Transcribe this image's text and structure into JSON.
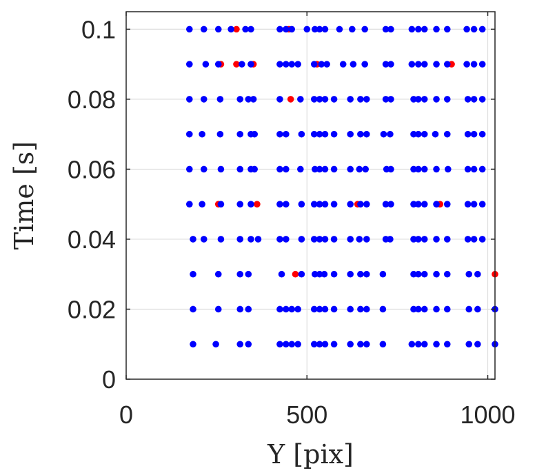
{
  "chart_data": {
    "type": "scatter",
    "xlabel": "Y [pix]",
    "ylabel": "Time [s]",
    "xlim": [
      0,
      1020
    ],
    "ylim": [
      0,
      0.105
    ],
    "xticks": [
      0,
      500,
      1000
    ],
    "xtick_labels": [
      "0",
      "500",
      "1000"
    ],
    "yticks": [
      0,
      0.02,
      0.04,
      0.06,
      0.08,
      0.1
    ],
    "ytick_labels": [
      "0",
      "0.02",
      "0.04",
      "0.06",
      "0.08",
      "0.1"
    ],
    "grid": true,
    "series": [
      {
        "color": "#ff0000",
        "points": [
          [
            305,
            0.1
          ],
          [
            450,
            0.1
          ],
          [
            262,
            0.09
          ],
          [
            305,
            0.09
          ],
          [
            352,
            0.09
          ],
          [
            528,
            0.09
          ],
          [
            900,
            0.09
          ],
          [
            455,
            0.08
          ],
          [
            255,
            0.05
          ],
          [
            362,
            0.05
          ],
          [
            640,
            0.05
          ],
          [
            868,
            0.05
          ],
          [
            468,
            0.03
          ],
          [
            1020,
            0.03
          ]
        ]
      },
      {
        "color": "#0000ff",
        "points": [
          [
            175,
            0.1
          ],
          [
            215,
            0.1
          ],
          [
            255,
            0.1
          ],
          [
            290,
            0.1
          ],
          [
            330,
            0.1
          ],
          [
            345,
            0.1
          ],
          [
            425,
            0.1
          ],
          [
            442,
            0.1
          ],
          [
            458,
            0.1
          ],
          [
            500,
            0.1
          ],
          [
            522,
            0.1
          ],
          [
            535,
            0.1
          ],
          [
            550,
            0.1
          ],
          [
            590,
            0.1
          ],
          [
            625,
            0.1
          ],
          [
            660,
            0.1
          ],
          [
            718,
            0.1
          ],
          [
            732,
            0.1
          ],
          [
            790,
            0.1
          ],
          [
            808,
            0.1
          ],
          [
            825,
            0.1
          ],
          [
            858,
            0.1
          ],
          [
            888,
            0.1
          ],
          [
            942,
            0.1
          ],
          [
            962,
            0.1
          ],
          [
            985,
            0.1
          ],
          [
            175,
            0.09
          ],
          [
            220,
            0.09
          ],
          [
            255,
            0.09
          ],
          [
            320,
            0.09
          ],
          [
            345,
            0.09
          ],
          [
            425,
            0.09
          ],
          [
            442,
            0.09
          ],
          [
            458,
            0.09
          ],
          [
            475,
            0.09
          ],
          [
            520,
            0.09
          ],
          [
            540,
            0.09
          ],
          [
            555,
            0.09
          ],
          [
            600,
            0.09
          ],
          [
            628,
            0.09
          ],
          [
            660,
            0.09
          ],
          [
            718,
            0.09
          ],
          [
            732,
            0.09
          ],
          [
            790,
            0.09
          ],
          [
            808,
            0.09
          ],
          [
            825,
            0.09
          ],
          [
            858,
            0.09
          ],
          [
            888,
            0.09
          ],
          [
            942,
            0.09
          ],
          [
            962,
            0.09
          ],
          [
            985,
            0.09
          ],
          [
            175,
            0.08
          ],
          [
            215,
            0.08
          ],
          [
            260,
            0.08
          ],
          [
            315,
            0.08
          ],
          [
            338,
            0.08
          ],
          [
            352,
            0.08
          ],
          [
            425,
            0.08
          ],
          [
            482,
            0.08
          ],
          [
            520,
            0.08
          ],
          [
            535,
            0.08
          ],
          [
            550,
            0.08
          ],
          [
            575,
            0.08
          ],
          [
            620,
            0.08
          ],
          [
            648,
            0.08
          ],
          [
            665,
            0.08
          ],
          [
            718,
            0.08
          ],
          [
            732,
            0.08
          ],
          [
            795,
            0.08
          ],
          [
            808,
            0.08
          ],
          [
            825,
            0.08
          ],
          [
            858,
            0.08
          ],
          [
            888,
            0.08
          ],
          [
            945,
            0.08
          ],
          [
            962,
            0.08
          ],
          [
            985,
            0.08
          ],
          [
            175,
            0.07
          ],
          [
            210,
            0.07
          ],
          [
            260,
            0.07
          ],
          [
            315,
            0.07
          ],
          [
            345,
            0.07
          ],
          [
            355,
            0.07
          ],
          [
            425,
            0.07
          ],
          [
            442,
            0.07
          ],
          [
            485,
            0.07
          ],
          [
            520,
            0.07
          ],
          [
            535,
            0.07
          ],
          [
            550,
            0.07
          ],
          [
            575,
            0.07
          ],
          [
            620,
            0.07
          ],
          [
            648,
            0.07
          ],
          [
            665,
            0.07
          ],
          [
            712,
            0.07
          ],
          [
            730,
            0.07
          ],
          [
            795,
            0.07
          ],
          [
            808,
            0.07
          ],
          [
            825,
            0.07
          ],
          [
            855,
            0.07
          ],
          [
            888,
            0.07
          ],
          [
            945,
            0.07
          ],
          [
            962,
            0.07
          ],
          [
            985,
            0.07
          ],
          [
            175,
            0.06
          ],
          [
            215,
            0.06
          ],
          [
            262,
            0.06
          ],
          [
            315,
            0.06
          ],
          [
            345,
            0.06
          ],
          [
            355,
            0.06
          ],
          [
            425,
            0.06
          ],
          [
            442,
            0.06
          ],
          [
            482,
            0.06
          ],
          [
            522,
            0.06
          ],
          [
            535,
            0.06
          ],
          [
            550,
            0.06
          ],
          [
            575,
            0.06
          ],
          [
            620,
            0.06
          ],
          [
            645,
            0.06
          ],
          [
            662,
            0.06
          ],
          [
            720,
            0.06
          ],
          [
            732,
            0.06
          ],
          [
            795,
            0.06
          ],
          [
            808,
            0.06
          ],
          [
            825,
            0.06
          ],
          [
            858,
            0.06
          ],
          [
            890,
            0.06
          ],
          [
            945,
            0.06
          ],
          [
            962,
            0.06
          ],
          [
            985,
            0.06
          ],
          [
            175,
            0.05
          ],
          [
            210,
            0.05
          ],
          [
            262,
            0.05
          ],
          [
            315,
            0.05
          ],
          [
            345,
            0.05
          ],
          [
            425,
            0.05
          ],
          [
            442,
            0.05
          ],
          [
            485,
            0.05
          ],
          [
            520,
            0.05
          ],
          [
            535,
            0.05
          ],
          [
            550,
            0.05
          ],
          [
            575,
            0.05
          ],
          [
            620,
            0.05
          ],
          [
            648,
            0.05
          ],
          [
            665,
            0.05
          ],
          [
            718,
            0.05
          ],
          [
            732,
            0.05
          ],
          [
            795,
            0.05
          ],
          [
            808,
            0.05
          ],
          [
            825,
            0.05
          ],
          [
            858,
            0.05
          ],
          [
            888,
            0.05
          ],
          [
            945,
            0.05
          ],
          [
            962,
            0.05
          ],
          [
            985,
            0.05
          ],
          [
            185,
            0.04
          ],
          [
            215,
            0.04
          ],
          [
            262,
            0.04
          ],
          [
            315,
            0.04
          ],
          [
            345,
            0.04
          ],
          [
            365,
            0.04
          ],
          [
            425,
            0.04
          ],
          [
            442,
            0.04
          ],
          [
            485,
            0.04
          ],
          [
            520,
            0.04
          ],
          [
            535,
            0.04
          ],
          [
            550,
            0.04
          ],
          [
            575,
            0.04
          ],
          [
            620,
            0.04
          ],
          [
            645,
            0.04
          ],
          [
            665,
            0.04
          ],
          [
            718,
            0.04
          ],
          [
            730,
            0.04
          ],
          [
            795,
            0.04
          ],
          [
            808,
            0.04
          ],
          [
            825,
            0.04
          ],
          [
            858,
            0.04
          ],
          [
            888,
            0.04
          ],
          [
            945,
            0.04
          ],
          [
            962,
            0.04
          ],
          [
            985,
            0.04
          ],
          [
            185,
            0.03
          ],
          [
            255,
            0.03
          ],
          [
            315,
            0.03
          ],
          [
            338,
            0.03
          ],
          [
            430,
            0.03
          ],
          [
            485,
            0.03
          ],
          [
            522,
            0.03
          ],
          [
            535,
            0.03
          ],
          [
            548,
            0.03
          ],
          [
            575,
            0.03
          ],
          [
            620,
            0.03
          ],
          [
            648,
            0.03
          ],
          [
            665,
            0.03
          ],
          [
            710,
            0.03
          ],
          [
            795,
            0.03
          ],
          [
            808,
            0.03
          ],
          [
            825,
            0.03
          ],
          [
            858,
            0.03
          ],
          [
            888,
            0.03
          ],
          [
            948,
            0.03
          ],
          [
            972,
            0.03
          ],
          [
            185,
            0.02
          ],
          [
            255,
            0.02
          ],
          [
            315,
            0.02
          ],
          [
            338,
            0.02
          ],
          [
            425,
            0.02
          ],
          [
            442,
            0.02
          ],
          [
            458,
            0.02
          ],
          [
            475,
            0.02
          ],
          [
            520,
            0.02
          ],
          [
            535,
            0.02
          ],
          [
            550,
            0.02
          ],
          [
            575,
            0.02
          ],
          [
            620,
            0.02
          ],
          [
            648,
            0.02
          ],
          [
            665,
            0.02
          ],
          [
            710,
            0.02
          ],
          [
            795,
            0.02
          ],
          [
            808,
            0.02
          ],
          [
            825,
            0.02
          ],
          [
            858,
            0.02
          ],
          [
            888,
            0.02
          ],
          [
            948,
            0.02
          ],
          [
            972,
            0.02
          ],
          [
            1020,
            0.02
          ],
          [
            185,
            0.01
          ],
          [
            248,
            0.01
          ],
          [
            315,
            0.01
          ],
          [
            338,
            0.01
          ],
          [
            425,
            0.01
          ],
          [
            442,
            0.01
          ],
          [
            458,
            0.01
          ],
          [
            475,
            0.01
          ],
          [
            520,
            0.01
          ],
          [
            535,
            0.01
          ],
          [
            550,
            0.01
          ],
          [
            575,
            0.01
          ],
          [
            620,
            0.01
          ],
          [
            648,
            0.01
          ],
          [
            665,
            0.01
          ],
          [
            710,
            0.01
          ],
          [
            790,
            0.01
          ],
          [
            808,
            0.01
          ],
          [
            825,
            0.01
          ],
          [
            858,
            0.01
          ],
          [
            888,
            0.01
          ],
          [
            948,
            0.01
          ],
          [
            972,
            0.01
          ],
          [
            1020,
            0.01
          ]
        ]
      }
    ]
  }
}
